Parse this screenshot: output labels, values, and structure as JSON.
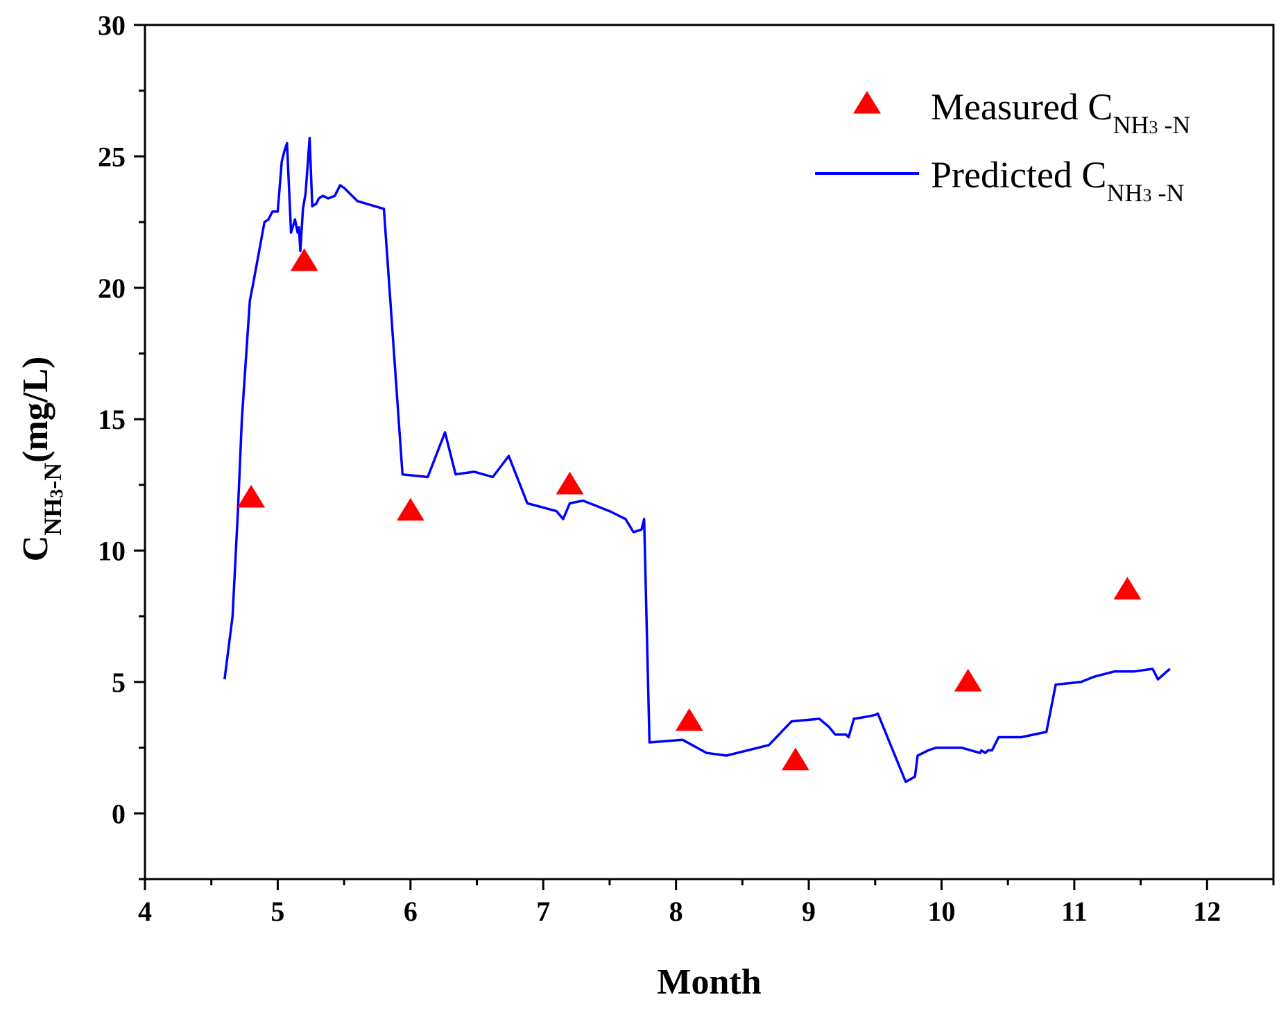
{
  "chart_data": {
    "type": "line+scatter",
    "title": "",
    "xlabel": "Month",
    "ylabel": {
      "main": "C",
      "sub_pre": "NH",
      "sub_num": "3",
      "sub_post": "-N",
      "tail": "(mg/L)"
    },
    "xlim": [
      4,
      12.5
    ],
    "ylim": [
      -2.5,
      30
    ],
    "xticks": [
      4,
      5,
      6,
      7,
      8,
      9,
      10,
      11,
      12
    ],
    "yticks": [
      0,
      5,
      10,
      15,
      20,
      25,
      30
    ],
    "legend_position": "top-right",
    "colors": {
      "measured": "#ff0000",
      "predicted": "#0000ff",
      "axis": "#000000"
    },
    "series": [
      {
        "name": "Measured",
        "legend": {
          "main": "Measured C",
          "sub_pre": "NH",
          "sub_num": "3",
          "sub_post": " -N"
        },
        "kind": "scatter",
        "marker": "triangle",
        "x": [
          4.8,
          5.2,
          6.0,
          7.2,
          8.1,
          8.9,
          10.2,
          11.4
        ],
        "y": [
          12.0,
          21.0,
          11.5,
          12.5,
          3.5,
          2.0,
          5.0,
          8.5
        ]
      },
      {
        "name": "Predicted",
        "legend": {
          "main": "Predicted C",
          "sub_pre": "NH",
          "sub_num": "3",
          "sub_post": " -N"
        },
        "kind": "line",
        "x": [
          4.6,
          4.66,
          4.7,
          4.73,
          4.79,
          4.82,
          4.9,
          4.93,
          4.96,
          5.0,
          5.03,
          5.05,
          5.07,
          5.1,
          5.13,
          5.15,
          5.16,
          5.17,
          5.19,
          5.21,
          5.24,
          5.26,
          5.29,
          5.31,
          5.34,
          5.38,
          5.43,
          5.47,
          5.5,
          5.6,
          5.8,
          5.94,
          6.13,
          6.26,
          6.34,
          6.48,
          6.62,
          6.74,
          6.88,
          7.1,
          7.15,
          7.2,
          7.3,
          7.4,
          7.5,
          7.62,
          7.68,
          7.74,
          7.76,
          7.8,
          8.05,
          8.23,
          8.38,
          8.7,
          8.87,
          9.08,
          9.15,
          9.2,
          9.28,
          9.3,
          9.34,
          9.46,
          9.5,
          9.52,
          9.73,
          9.8,
          9.82,
          9.9,
          9.96,
          10.05,
          10.15,
          10.29,
          10.3,
          10.33,
          10.35,
          10.38,
          10.43,
          10.6,
          10.79,
          10.86,
          11.05,
          11.15,
          11.3,
          11.45,
          11.59,
          11.63,
          11.72
        ],
        "y": [
          5.1,
          7.5,
          11.5,
          15.0,
          19.5,
          20.3,
          22.5,
          22.6,
          22.9,
          22.9,
          24.8,
          25.2,
          25.5,
          22.1,
          22.6,
          22.1,
          22.3,
          21.4,
          23.0,
          23.6,
          25.7,
          23.1,
          23.2,
          23.4,
          23.5,
          23.4,
          23.5,
          23.9,
          23.8,
          23.3,
          23.0,
          12.9,
          12.8,
          14.5,
          12.9,
          13.0,
          12.8,
          13.6,
          11.8,
          11.5,
          11.2,
          11.8,
          11.9,
          11.7,
          11.5,
          11.2,
          10.7,
          10.8,
          11.2,
          2.7,
          2.8,
          2.3,
          2.2,
          2.6,
          3.5,
          3.6,
          3.3,
          3.0,
          3.0,
          2.9,
          3.6,
          3.7,
          3.75,
          3.8,
          1.2,
          1.4,
          2.2,
          2.4,
          2.5,
          2.5,
          2.5,
          2.3,
          2.4,
          2.3,
          2.4,
          2.4,
          2.9,
          2.9,
          3.1,
          4.9,
          5.0,
          5.2,
          5.4,
          5.4,
          5.5,
          5.1,
          5.5
        ]
      }
    ]
  }
}
